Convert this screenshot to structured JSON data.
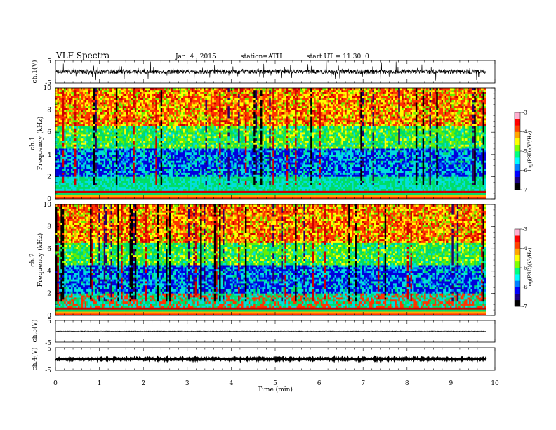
{
  "header": {
    "title": "VLF  Spectra",
    "date": "Jan. 4  , 2015",
    "station": "station=ATH",
    "start": "start  UT  =    11:30: 0"
  },
  "colors": {
    "palette": [
      "#000000",
      "#2a0066",
      "#0000dd",
      "#0066ff",
      "#00dddd",
      "#00dd66",
      "#66ee00",
      "#ffff00",
      "#ffaa00",
      "#ff3300",
      "#cc0000",
      "#ff99cc"
    ],
    "trace": "#000000"
  },
  "chart_data": [
    {
      "type": "line",
      "name": "ch1-waveform",
      "ylabel": "ch.1(V)",
      "ylim": [
        -5,
        5
      ],
      "yticks": [
        "5",
        "-5"
      ],
      "baseline": 0,
      "noise_amplitude": 1.0
    },
    {
      "type": "heatmap",
      "name": "ch1-spectrogram",
      "ylabel": "Frequency  (kHz)",
      "channel_label": "ch.1",
      "ylim": [
        0,
        10
      ],
      "yticks": [
        "0",
        "2",
        "4",
        "6",
        "8",
        "10"
      ],
      "colorbar": {
        "label": "log(PSD)(V²/Hz)",
        "range": [
          -7,
          -3
        ],
        "ticks": [
          "-3",
          "-4",
          "-5",
          "-6",
          "-7"
        ]
      }
    },
    {
      "type": "heatmap",
      "name": "ch2-spectrogram",
      "ylabel": "Frequency  (kHz)",
      "channel_label": "ch.2",
      "ylim": [
        0,
        10
      ],
      "yticks": [
        "0",
        "2",
        "4",
        "6",
        "8",
        "10"
      ],
      "colorbar": {
        "label": "log(PSD)(V²/Hz)",
        "range": [
          -7,
          -3
        ],
        "ticks": [
          "-3",
          "-4",
          "-5",
          "-6",
          "-7"
        ]
      }
    },
    {
      "type": "line",
      "name": "ch3-waveform",
      "ylabel": "ch.3(V)",
      "ylim": [
        -5,
        5
      ],
      "yticks": [
        "5",
        "-5"
      ],
      "baseline": 0,
      "noise_amplitude": 0.15
    },
    {
      "type": "line",
      "name": "ch4-waveform",
      "ylabel": "ch.4(V)",
      "ylim": [
        -5,
        5
      ],
      "yticks": [
        "5",
        "-5"
      ],
      "baseline": 0,
      "noise_amplitude": 0.2
    }
  ],
  "x_axis": {
    "label": "Time  (min)",
    "xlim": [
      0,
      10
    ],
    "ticks": [
      "0",
      "1",
      "2",
      "3",
      "4",
      "5",
      "6",
      "7",
      "8",
      "9",
      "10"
    ],
    "data_end": 9.8
  }
}
